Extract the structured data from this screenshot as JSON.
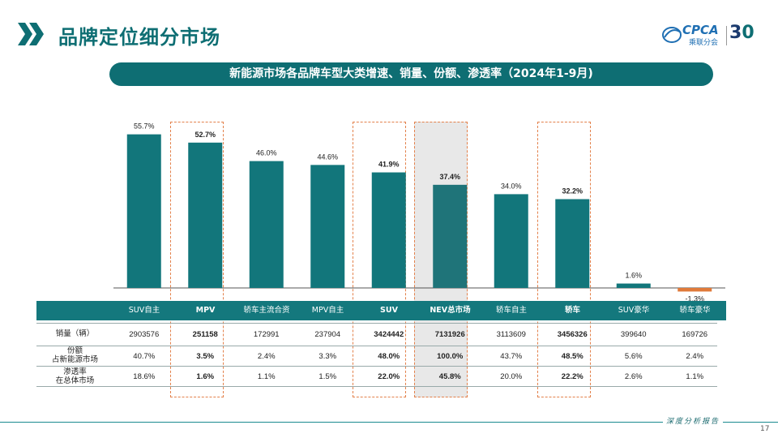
{
  "header": {
    "title": "品牌定位细分市场",
    "logo_brand": "CPCA",
    "logo_sub": "乘联分会",
    "logo_30_a": "3",
    "logo_30_b": "0"
  },
  "banner": {
    "text": "新能源市场各品牌车型大类增速、销量、份额、渗透率（2024年1-9月)"
  },
  "chart_data": {
    "type": "bar",
    "title": "新能源市场各品牌车型大类增速、销量、份额、渗透率（2024年1-9月)",
    "categories": [
      "SUV自主",
      "MPV",
      "轿车主流合资",
      "MPV自主",
      "SUV",
      "NEV总市场",
      "轿车自主",
      "轿车",
      "SUV豪华",
      "轿车豪华"
    ],
    "values": [
      55.7,
      52.7,
      46.0,
      44.6,
      41.9,
      37.4,
      34.0,
      32.2,
      1.6,
      -1.3
    ],
    "value_labels": [
      "55.7%",
      "52.7%",
      "46.0%",
      "44.6%",
      "41.9%",
      "37.4%",
      "34.0%",
      "32.2%",
      "1.6%",
      "-1.3%"
    ],
    "bold_categories": [
      1,
      4,
      5,
      7
    ],
    "highlighted_categories": [
      1,
      4,
      5,
      7
    ],
    "colors": {
      "bar": "#12767b",
      "negative": "#e07a3a",
      "highlight_border": "#e3814b",
      "header": "#14787d"
    }
  },
  "table": {
    "columns": [
      "SUV自主",
      "MPV",
      "轿车主流合资",
      "MPV自主",
      "SUV",
      "NEV总市场",
      "轿车自主",
      "轿车",
      "SUV豪华",
      "轿车豪华"
    ],
    "rows": [
      {
        "label": "销量（辆）",
        "values": [
          "2903576",
          "251158",
          "172991",
          "237904",
          "3424442",
          "7131926",
          "3113609",
          "3456326",
          "399640",
          "169726"
        ]
      },
      {
        "label": "份额\n占新能源市场",
        "values": [
          "40.7%",
          "3.5%",
          "2.4%",
          "3.3%",
          "48.0%",
          "100.0%",
          "43.7%",
          "48.5%",
          "5.6%",
          "2.4%"
        ]
      },
      {
        "label": "渗透率\n在总体市场",
        "values": [
          "18.6%",
          "1.6%",
          "1.1%",
          "1.5%",
          "22.0%",
          "45.8%",
          "20.0%",
          "22.2%",
          "2.6%",
          "1.1%"
        ]
      }
    ]
  },
  "footer": {
    "text": "深度分析报告",
    "page": "17"
  }
}
